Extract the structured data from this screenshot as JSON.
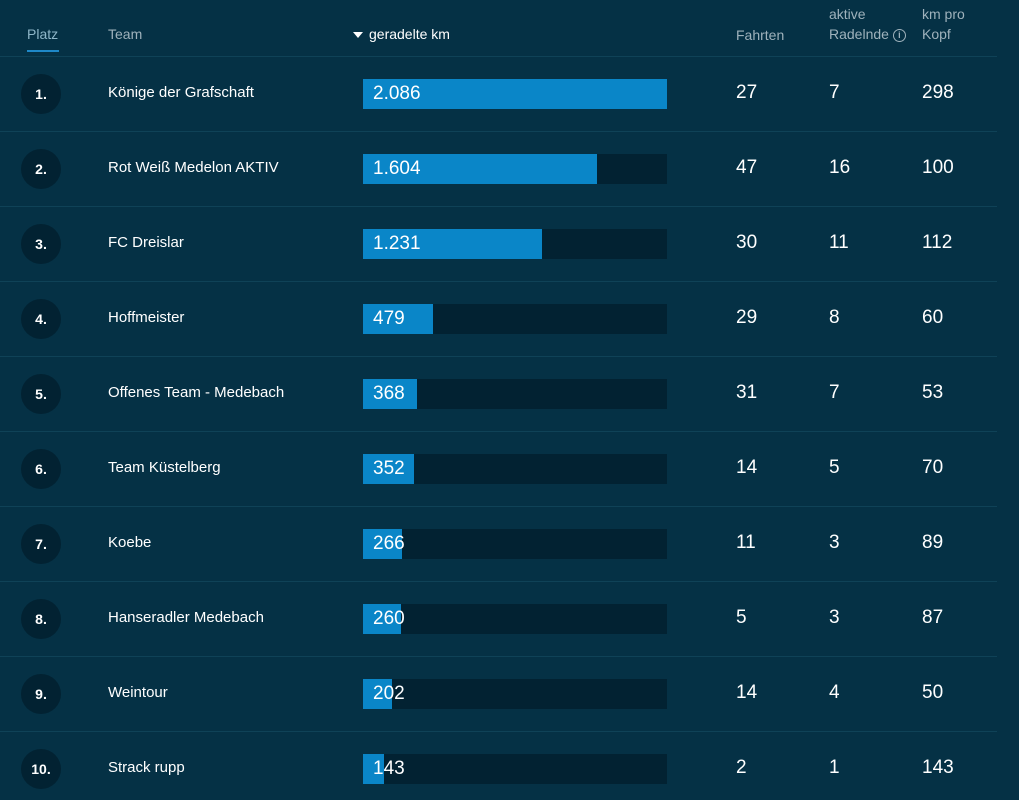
{
  "header": {
    "platz": "Platz",
    "team": "Team",
    "km": "geradelte km",
    "fahrten": "Fahrten",
    "aktive_line1": "aktive",
    "aktive_line2": "Radelnde",
    "kmkopf_line1": "km pro",
    "kmkopf_line2": "Kopf"
  },
  "colors": {
    "background": "#053145",
    "bar": "#0a86c8",
    "track": "#022232"
  },
  "max_km": 2086,
  "rows": [
    {
      "rank": "1.",
      "team": "Könige der Grafschaft",
      "km": 2086,
      "km_label": "2.086",
      "fahrten": "27",
      "aktive": "7",
      "kmkopf": "298"
    },
    {
      "rank": "2.",
      "team": "Rot Weiß Medelon AKTIV",
      "km": 1604,
      "km_label": "1.604",
      "fahrten": "47",
      "aktive": "16",
      "kmkopf": "100"
    },
    {
      "rank": "3.",
      "team": "FC Dreislar",
      "km": 1231,
      "km_label": "1.231",
      "fahrten": "30",
      "aktive": "11",
      "kmkopf": "112"
    },
    {
      "rank": "4.",
      "team": "Hoffmeister",
      "km": 479,
      "km_label": "479",
      "fahrten": "29",
      "aktive": "8",
      "kmkopf": "60"
    },
    {
      "rank": "5.",
      "team": "Offenes Team - Medebach",
      "km": 368,
      "km_label": "368",
      "fahrten": "31",
      "aktive": "7",
      "kmkopf": "53"
    },
    {
      "rank": "6.",
      "team": "Team Küstelberg",
      "km": 352,
      "km_label": "352",
      "fahrten": "14",
      "aktive": "5",
      "kmkopf": "70"
    },
    {
      "rank": "7.",
      "team": "Koebe",
      "km": 266,
      "km_label": "266",
      "fahrten": "11",
      "aktive": "3",
      "kmkopf": "89"
    },
    {
      "rank": "8.",
      "team": "Hanseradler Medebach",
      "km": 260,
      "km_label": "260",
      "fahrten": "5",
      "aktive": "3",
      "kmkopf": "87"
    },
    {
      "rank": "9.",
      "team": "Weintour",
      "km": 202,
      "km_label": "202",
      "fahrten": "14",
      "aktive": "4",
      "kmkopf": "50"
    },
    {
      "rank": "10.",
      "team": "Strack rupp",
      "km": 143,
      "km_label": "143",
      "fahrten": "2",
      "aktive": "1",
      "kmkopf": "143"
    }
  ]
}
